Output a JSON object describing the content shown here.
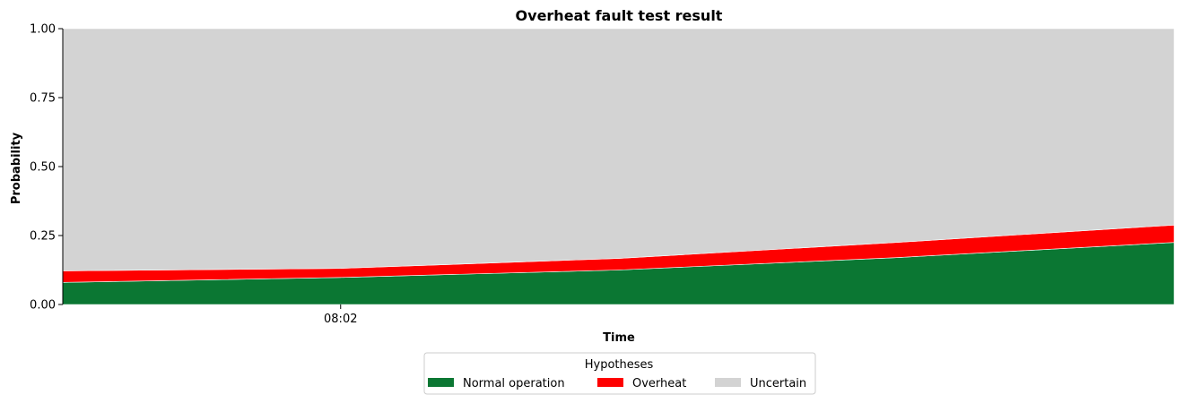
{
  "chart_data": {
    "type": "area",
    "stacked": true,
    "title": "Overheat fault test result",
    "xlabel": "Time",
    "ylabel": "Probability",
    "ylim": [
      0,
      1
    ],
    "yticks": [
      "0.00",
      "0.25",
      "0.50",
      "0.75",
      "1.00"
    ],
    "xlim": [
      0,
      10
    ],
    "xticks": [
      {
        "x": 2.5,
        "label": "08:02"
      }
    ],
    "x": [
      0,
      2.5,
      5,
      7.5,
      10
    ],
    "series": [
      {
        "name": "Normal operation",
        "color": "#0b7733",
        "values": [
          0.08,
          0.098,
          0.125,
          0.17,
          0.225
        ]
      },
      {
        "name": "Overheat",
        "color": "#fe0000",
        "values": [
          0.042,
          0.033,
          0.042,
          0.055,
          0.063
        ]
      },
      {
        "name": "Uncertain",
        "color": "#d3d3d3",
        "values": [
          0.878,
          0.869,
          0.833,
          0.775,
          0.712
        ]
      }
    ],
    "legend": {
      "title": "Hypotheses",
      "position": "bottom-center",
      "columns": 3
    },
    "grid": false
  }
}
